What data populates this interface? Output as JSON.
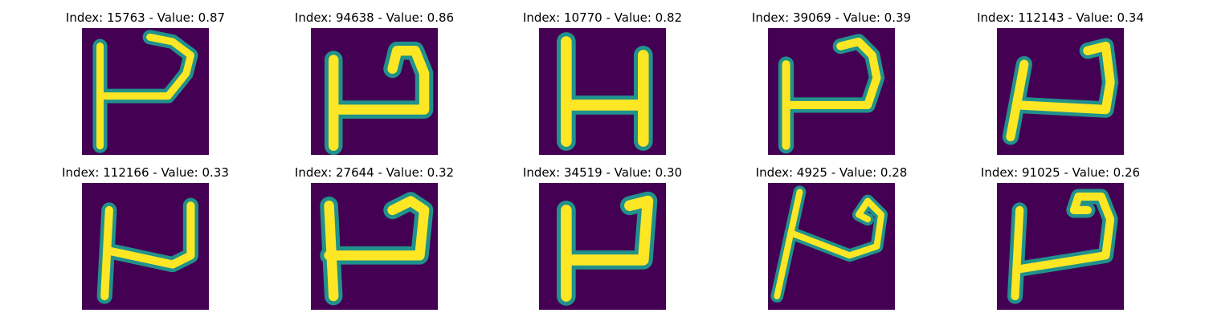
{
  "figure": {
    "colormap": [
      "#440154",
      "#3b528b",
      "#21918c",
      "#5ec962",
      "#fde725"
    ],
    "panels": [
      {
        "title": "Index: 15763 - Value: 0.87",
        "index": 15763,
        "value": 0.87,
        "glyph": "P"
      },
      {
        "title": "Index: 94638 - Value: 0.86",
        "index": 94638,
        "value": 0.86,
        "glyph": "P-bold"
      },
      {
        "title": "Index: 10770 - Value: 0.82",
        "index": 10770,
        "value": 0.82,
        "glyph": "H"
      },
      {
        "title": "Index: 39069 - Value: 0.39",
        "index": 39069,
        "value": 0.39,
        "glyph": "P-curl"
      },
      {
        "title": "Index: 112143 - Value: 0.34",
        "index": 112143,
        "value": 0.34,
        "glyph": "P-slant"
      },
      {
        "title": "Index: 112166 - Value: 0.33",
        "index": 112166,
        "value": 0.33,
        "glyph": "P-tall"
      },
      {
        "title": "Index: 27644 - Value: 0.32",
        "index": 27644,
        "value": 0.32,
        "glyph": "P-wide"
      },
      {
        "title": "Index: 34519 - Value: 0.30",
        "index": 34519,
        "value": 0.3,
        "glyph": "P-thick"
      },
      {
        "title": "Index: 4925 - Value: 0.28",
        "index": 4925,
        "value": 0.28,
        "glyph": "P-loop"
      },
      {
        "title": "Index: 91025 - Value: 0.26",
        "index": 91025,
        "value": 0.26,
        "glyph": "P-hook"
      }
    ]
  }
}
